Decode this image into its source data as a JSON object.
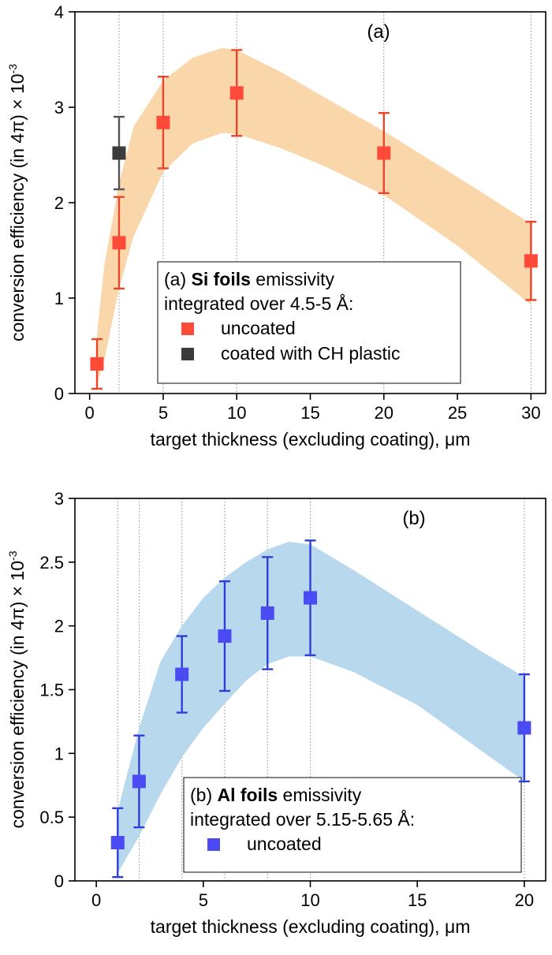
{
  "chart_data": [
    {
      "type": "scatter",
      "panel_label": "(a)",
      "xlabel": "target thickness (excluding coating), μm",
      "ylabel": "conversion efficiency (in 4π) × 10",
      "ylabel_sup": "-3",
      "xlim": [
        -1,
        31
      ],
      "ylim": [
        0,
        4
      ],
      "xticks": [
        0,
        5,
        10,
        15,
        20,
        25,
        30
      ],
      "yticks": [
        0,
        1,
        2,
        3,
        4
      ],
      "grid": "vertical dotted lines at data x positions",
      "vlines": [
        2,
        5,
        10,
        20,
        30
      ],
      "legend": {
        "placement": "lower-center",
        "title_prefix": "(a) ",
        "title_bold": "Si foils",
        "title_suffix": " emissivity",
        "line2": "integrated over 4.5-5 Å:"
      },
      "band": {
        "color": "#f9d7ab",
        "x": [
          0.5,
          1,
          2,
          3,
          5,
          7,
          9,
          10,
          13,
          16,
          20,
          25,
          30
        ],
        "upper": [
          0.62,
          1.35,
          2.2,
          2.8,
          3.28,
          3.52,
          3.62,
          3.6,
          3.37,
          3.1,
          2.75,
          2.27,
          1.78
        ],
        "lower": [
          0.1,
          0.35,
          1.1,
          1.65,
          2.32,
          2.62,
          2.73,
          2.72,
          2.57,
          2.38,
          2.08,
          1.55,
          0.93
        ]
      },
      "series": [
        {
          "name": "uncoated",
          "color": "#ff4a3a",
          "errcolor": "#e8452d",
          "x": [
            0.5,
            2,
            5,
            10,
            20,
            30
          ],
          "y": [
            0.31,
            1.58,
            2.84,
            3.15,
            2.52,
            1.39
          ],
          "err": [
            0.26,
            0.48,
            0.48,
            0.45,
            0.42,
            0.41
          ]
        },
        {
          "name": "coated with CH plastic",
          "color": "#3b3b3b",
          "errcolor": "#555555",
          "x": [
            2
          ],
          "y": [
            2.52
          ],
          "err": [
            0.38
          ]
        }
      ]
    },
    {
      "type": "scatter",
      "panel_label": "(b)",
      "xlabel": "target thickness (excluding coating), μm",
      "ylabel": "conversion efficiency (in 4π) × 10",
      "ylabel_sup": "-3",
      "xlim": [
        -1,
        21
      ],
      "ylim": [
        0,
        3
      ],
      "xticks": [
        0,
        5,
        10,
        15,
        20
      ],
      "yticks": [
        0,
        0.5,
        1,
        1.5,
        2,
        2.5,
        3
      ],
      "grid": "vertical dotted lines at data x positions",
      "vlines": [
        1,
        2,
        4,
        6,
        8,
        10,
        20
      ],
      "legend": {
        "placement": "lower-center",
        "title_prefix": "(b) ",
        "title_bold": "Al foils",
        "title_suffix": " emissivity",
        "line2": "integrated over 5.15-5.65 Å:"
      },
      "band": {
        "color": "#b8d8ee",
        "x": [
          1,
          2,
          3,
          4,
          5,
          6,
          7,
          8,
          9,
          10,
          12,
          15,
          18,
          20
        ],
        "upper": [
          0.55,
          1.2,
          1.72,
          2.0,
          2.22,
          2.38,
          2.5,
          2.6,
          2.66,
          2.64,
          2.44,
          2.12,
          1.8,
          1.6
        ],
        "lower": [
          0.06,
          0.35,
          0.68,
          0.97,
          1.2,
          1.39,
          1.57,
          1.7,
          1.76,
          1.76,
          1.64,
          1.38,
          1.02,
          0.78
        ]
      },
      "series": [
        {
          "name": "uncoated",
          "color": "#4a4bf2",
          "errcolor": "#2f3fd6",
          "x": [
            1,
            2,
            4,
            6,
            8,
            10,
            20
          ],
          "y": [
            0.3,
            0.78,
            1.62,
            1.92,
            2.1,
            2.22,
            1.2
          ],
          "err": [
            0.27,
            0.36,
            0.3,
            0.43,
            0.44,
            0.45,
            0.42
          ]
        }
      ]
    }
  ]
}
